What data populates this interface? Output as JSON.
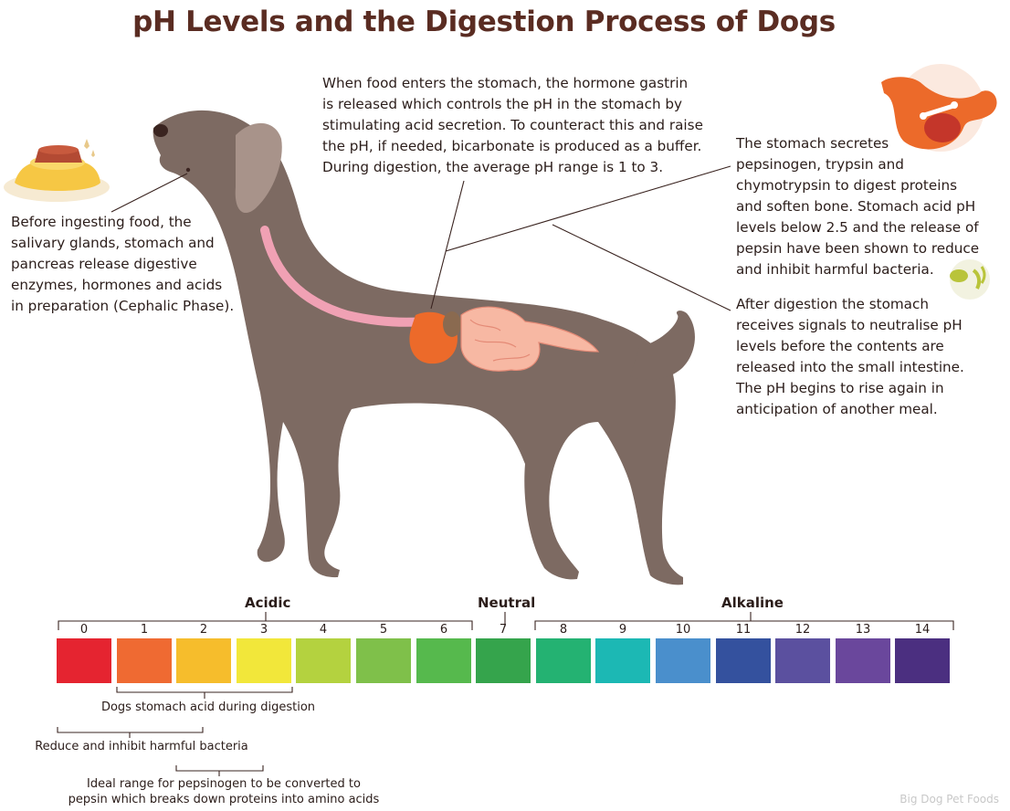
{
  "title": "pH Levels and the Digestion Process of Dogs",
  "paragraphs": {
    "gastrin": "When food enters the stomach, the hormone gastrin\nis released which controls the pH in the stomach by\nstimulating acid secretion. To counteract this and raise\nthe pH, if needed, bicarbonate is produced as a buffer.\nDuring digestion, the average pH range is 1 to 3.",
    "cephalic": "Before ingesting food, the\nsalivary glands, stomach and\npancreas release digestive\nenzymes, hormones and acids\nin preparation (Cephalic Phase).",
    "secretes": "The stomach secretes\npepsinogen, trypsin and\nchymotrypsin to digest proteins\nand soften bone. Stomach acid pH\nlevels below 2.5 and  the release of\npepsin have been shown to reduce\nand inhibit harmful bacteria.",
    "after": "After digestion the stomach\nreceives signals to neutralise pH\nlevels before the contents are\nreleased into the small intestine.\nThe pH begins to rise again in\nanticipation of another meal."
  },
  "scale": {
    "acidic": "Acidic",
    "neutral": "Neutral",
    "alkaline": "Alkaline",
    "ticks": [
      "0",
      "1",
      "2",
      "3",
      "4",
      "5",
      "6",
      "7",
      "8",
      "9",
      "10",
      "11",
      "12",
      "13",
      "14"
    ],
    "colors": [
      "#e52430",
      "#ef6a32",
      "#f6bd2c",
      "#f2e73a",
      "#b4d23f",
      "#7fc04a",
      "#56b94d",
      "#35a44c",
      "#24b272",
      "#1cb8b4",
      "#4a8fcc",
      "#34519e",
      "#5b509f",
      "#6a479c",
      "#4b2f80"
    ]
  },
  "notes": {
    "digestion": "Dogs stomach acid during digestion",
    "bacteria": "Reduce and inhibit  harmful bacteria",
    "pepsin_line1": "Ideal range for pepsinogen to be  converted to",
    "pepsin_line2": "pepsin which breaks down proteins into amino acids"
  },
  "brand": "Big Dog Pet Foods",
  "colors": {
    "title": "#5a2c22",
    "dog": "#7d6a62",
    "esophagus": "#f0a1b4",
    "stomach": "#ec6a2a",
    "intestine": "#f7b8a3"
  }
}
